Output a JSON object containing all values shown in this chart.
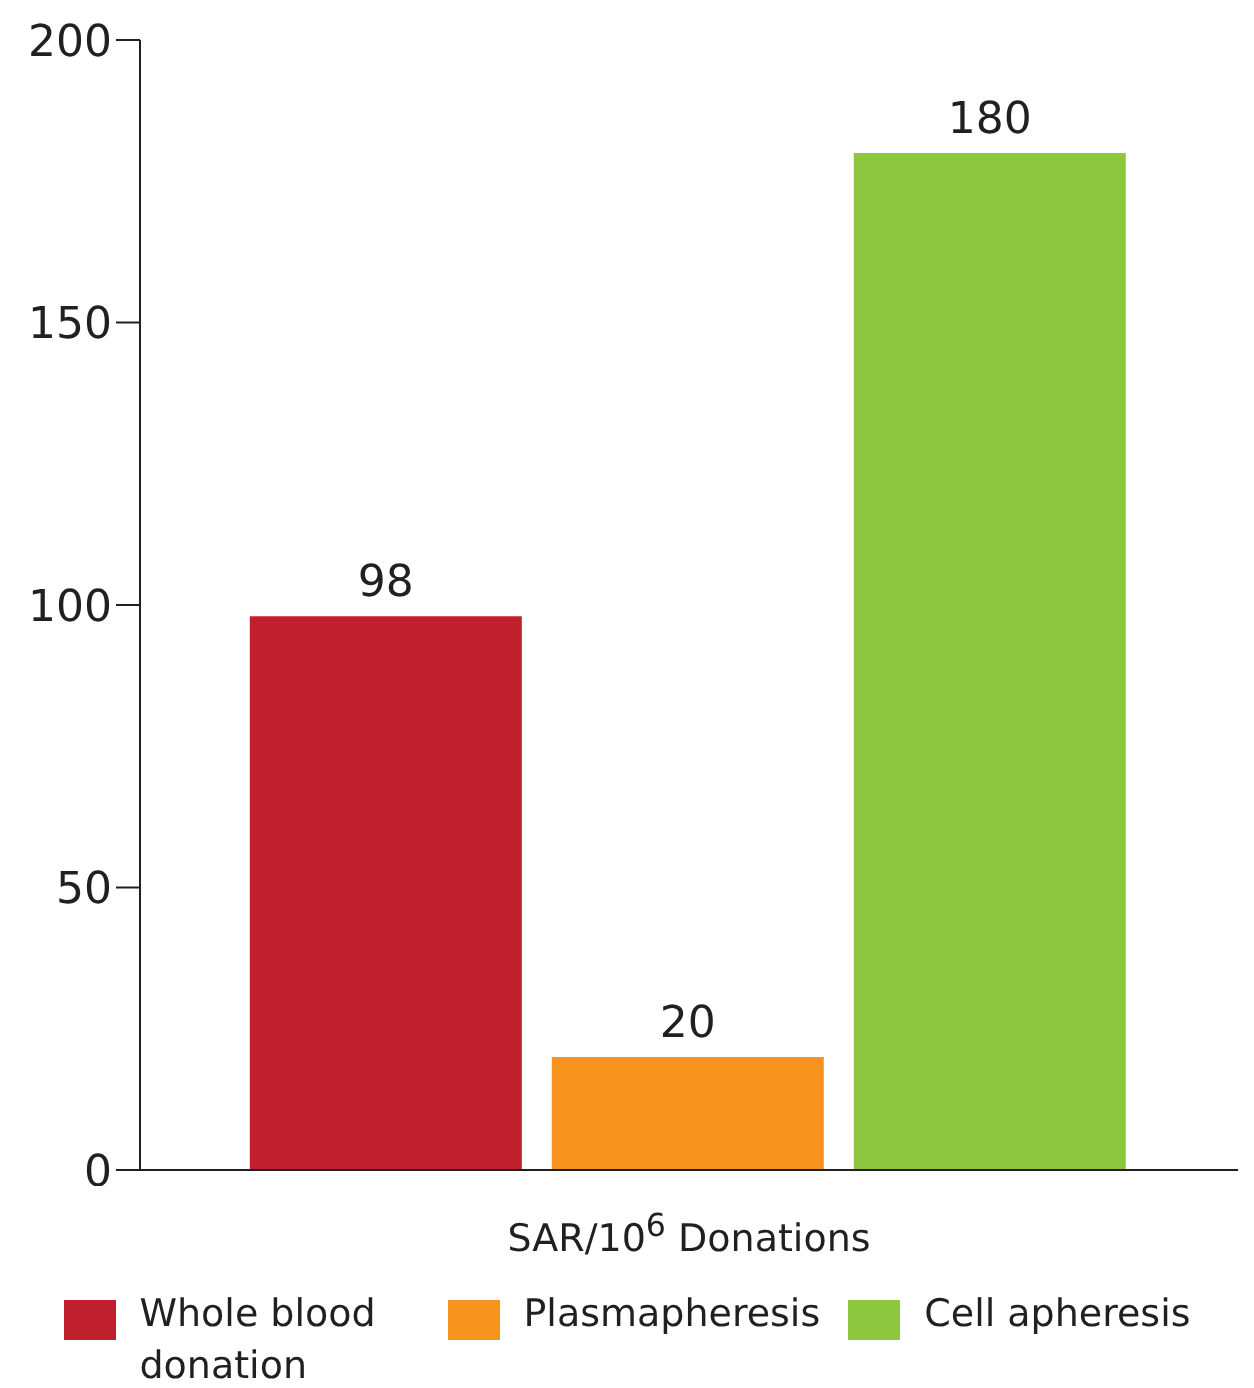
{
  "chart_data": {
    "type": "bar",
    "xlabel": "SAR/10$^{6}$ Donations",
    "categories": [
      null
    ],
    "series": [
      {
        "name": "Whole blood donation",
        "color": "#c0202e",
        "values": [
          98
        ]
      },
      {
        "name": "Plasmapheresis",
        "color": "#f7941d",
        "values": [
          20
        ]
      },
      {
        "name": "Cell apheresis",
        "color": "#8dc63f",
        "values": [
          180
        ]
      }
    ],
    "ylim": [
      0,
      200
    ],
    "yticks": [
      0,
      50,
      100,
      150,
      200
    ],
    "data_labels": true,
    "legend": "bottom",
    "tick_labels": "y",
    "grid": false
  }
}
